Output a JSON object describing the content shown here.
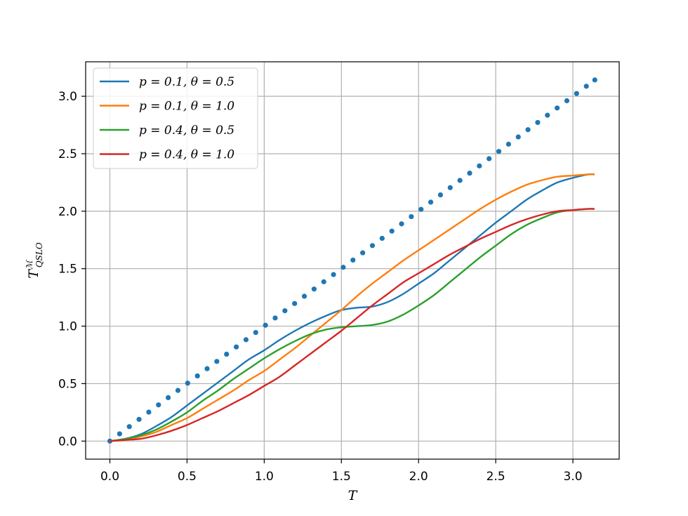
{
  "chart_data": {
    "type": "line",
    "xlabel": "T",
    "ylabel": {
      "base": "T",
      "sup": "ℳ",
      "sub": "QSLO"
    },
    "xlim": [
      -0.157,
      3.3
    ],
    "ylim": [
      -0.157,
      3.3
    ],
    "xticks": [
      "0.0",
      "0.5",
      "1.0",
      "1.5",
      "2.0",
      "2.5",
      "3.0"
    ],
    "yticks": [
      "0.0",
      "0.5",
      "1.0",
      "1.5",
      "2.0",
      "2.5",
      "3.0"
    ],
    "grid": true,
    "legend_position": "top-left",
    "reference": {
      "style": "dotted",
      "color": "#1f77b4",
      "x": [
        0.0,
        0.063,
        0.126,
        0.189,
        0.252,
        0.315,
        0.378,
        0.441,
        0.504,
        0.567,
        0.63,
        0.693,
        0.756,
        0.819,
        0.882,
        0.945,
        1.008,
        1.071,
        1.134,
        1.197,
        1.26,
        1.323,
        1.386,
        1.449,
        1.512,
        1.575,
        1.638,
        1.701,
        1.764,
        1.827,
        1.89,
        1.953,
        2.016,
        2.079,
        2.142,
        2.205,
        2.268,
        2.331,
        2.394,
        2.457,
        2.52,
        2.583,
        2.646,
        2.709,
        2.772,
        2.835,
        2.898,
        2.961,
        3.024,
        3.087,
        3.142
      ],
      "y": [
        0.0,
        0.063,
        0.126,
        0.189,
        0.252,
        0.315,
        0.378,
        0.441,
        0.504,
        0.567,
        0.63,
        0.693,
        0.756,
        0.819,
        0.882,
        0.945,
        1.008,
        1.071,
        1.134,
        1.197,
        1.26,
        1.323,
        1.386,
        1.449,
        1.512,
        1.575,
        1.638,
        1.701,
        1.764,
        1.827,
        1.89,
        1.953,
        2.016,
        2.079,
        2.142,
        2.205,
        2.268,
        2.331,
        2.394,
        2.457,
        2.52,
        2.583,
        2.646,
        2.709,
        2.772,
        2.835,
        2.898,
        2.961,
        3.024,
        3.087,
        3.142
      ]
    },
    "x": [
      0.0,
      0.1,
      0.2,
      0.3,
      0.4,
      0.5,
      0.6,
      0.7,
      0.8,
      0.9,
      1.0,
      1.1,
      1.2,
      1.3,
      1.4,
      1.5,
      1.6,
      1.7,
      1.8,
      1.9,
      2.0,
      2.1,
      2.2,
      2.3,
      2.4,
      2.5,
      2.6,
      2.7,
      2.8,
      2.9,
      3.0,
      3.1,
      3.14
    ],
    "series": [
      {
        "name": "p = 0.1, θ = 0.5",
        "color": "#1f77b4",
        "values": [
          0.0,
          0.02,
          0.06,
          0.13,
          0.21,
          0.31,
          0.41,
          0.51,
          0.61,
          0.71,
          0.79,
          0.88,
          0.96,
          1.03,
          1.09,
          1.14,
          1.16,
          1.17,
          1.21,
          1.28,
          1.37,
          1.46,
          1.57,
          1.68,
          1.79,
          1.9,
          2.0,
          2.1,
          2.18,
          2.25,
          2.29,
          2.32,
          2.32
        ]
      },
      {
        "name": "p = 0.1, θ = 1.0",
        "color": "#ff7f0e",
        "values": [
          0.0,
          0.01,
          0.04,
          0.08,
          0.14,
          0.2,
          0.28,
          0.36,
          0.44,
          0.53,
          0.61,
          0.71,
          0.81,
          0.92,
          1.03,
          1.14,
          1.26,
          1.37,
          1.47,
          1.57,
          1.66,
          1.75,
          1.84,
          1.93,
          2.02,
          2.1,
          2.17,
          2.23,
          2.27,
          2.3,
          2.31,
          2.32,
          2.32
        ]
      },
      {
        "name": "p = 0.4, θ = 0.5",
        "color": "#2ca02c",
        "values": [
          0.0,
          0.02,
          0.05,
          0.1,
          0.17,
          0.25,
          0.35,
          0.44,
          0.54,
          0.63,
          0.72,
          0.8,
          0.87,
          0.93,
          0.97,
          0.99,
          1.0,
          1.01,
          1.04,
          1.1,
          1.18,
          1.27,
          1.38,
          1.49,
          1.6,
          1.7,
          1.8,
          1.88,
          1.94,
          1.99,
          2.01,
          2.02,
          2.02
        ]
      },
      {
        "name": "p = 0.4, θ = 1.0",
        "color": "#d62728",
        "values": [
          0.0,
          0.01,
          0.02,
          0.05,
          0.09,
          0.14,
          0.2,
          0.26,
          0.33,
          0.4,
          0.48,
          0.56,
          0.66,
          0.76,
          0.86,
          0.96,
          1.07,
          1.18,
          1.28,
          1.38,
          1.46,
          1.54,
          1.62,
          1.69,
          1.76,
          1.82,
          1.88,
          1.93,
          1.97,
          2.0,
          2.01,
          2.02,
          2.02
        ]
      }
    ]
  }
}
